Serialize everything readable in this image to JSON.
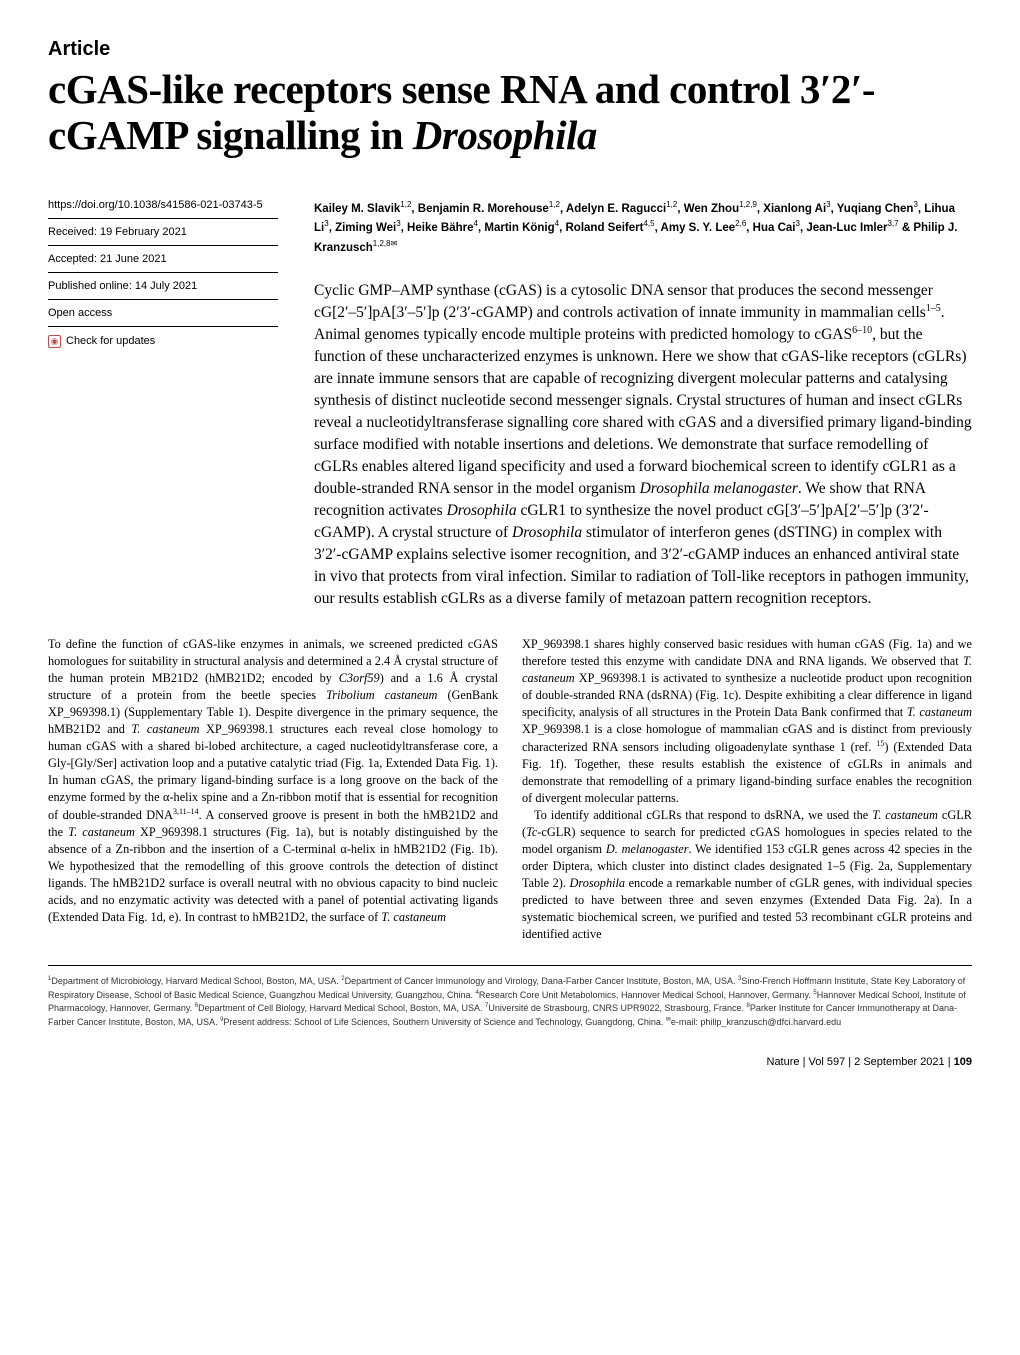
{
  "label": "Article",
  "title": "cGAS-like receptors sense RNA and control 3′2′-cGAMP signalling in <em>Drosophila</em>",
  "meta": {
    "doi": "https://doi.org/10.1038/s41586-021-03743-5",
    "received": "Received: 19 February 2021",
    "accepted": "Accepted: 21 June 2021",
    "published": "Published online: 14 July 2021",
    "access": "Open access",
    "check": "Check for updates"
  },
  "authors": "Kailey M. Slavik<sup>1,2</sup>, Benjamin R. Morehouse<sup>1,2</sup>, Adelyn E. Ragucci<sup>1,2</sup>, Wen Zhou<sup>1,2,9</sup>, Xianlong Ai<sup>3</sup>, Yuqiang Chen<sup>3</sup>, Lihua Li<sup>3</sup>, Ziming Wei<sup>3</sup>, Heike Bähre<sup>4</sup>, Martin König<sup>4</sup>, Roland Seifert<sup>4,5</sup>, Amy S. Y. Lee<sup>2,6</sup>, Hua Cai<sup>3</sup>, Jean-Luc Imler<sup>3,7</sup> & Philip J. Kranzusch<sup>1,2,8✉</sup>",
  "abstract": "Cyclic GMP–AMP synthase (cGAS) is a cytosolic DNA sensor that produces the second messenger cG[2′–5′]pA[3′–5′]p (2′3′-cGAMP) and controls activation of innate immunity in mammalian cells<sup>1–5</sup>. Animal genomes typically encode multiple proteins with predicted homology to cGAS<sup>6–10</sup>, but the function of these uncharacterized enzymes is unknown. Here we show that cGAS-like receptors (cGLRs) are innate immune sensors that are capable of recognizing divergent molecular patterns and catalysing synthesis of distinct nucleotide second messenger signals. Crystal structures of human and insect cGLRs reveal a nucleotidyltransferase signalling core shared with cGAS and a diversified primary ligand-binding surface modified with notable insertions and deletions. We demonstrate that surface remodelling of cGLRs enables altered ligand specificity and used a forward biochemical screen to identify cGLR1 as a double-stranded RNA sensor in the model organism <em>Drosophila melanogaster</em>. We show that RNA recognition activates <em>Drosophila</em> cGLR1 to synthesize the novel product cG[3′–5′]pA[2′–5′]p (3′2′-cGAMP). A crystal structure of <em>Drosophila</em> stimulator of interferon genes (dSTING) in complex with 3′2′-cGAMP explains selective isomer recognition, and 3′2′-cGAMP induces an enhanced antiviral state in vivo that protects from viral infection. Similar to radiation of Toll-like receptors in pathogen immunity, our results establish cGLRs as a diverse family of metazoan pattern recognition receptors.",
  "col1": "To define the function of cGAS-like enzymes in animals, we screened predicted cGAS homologues for suitability in structural analysis and determined a 2.4 Å crystal structure of the human protein MB21D2 (hMB21D2; encoded by <em>C3orf59</em>) and a 1.6 Å crystal structure of a protein from the beetle species <em>Tribolium castaneum</em> (GenBank XP_969398.1) (Supplementary Table 1). Despite divergence in the primary sequence, the hMB21D2 and <em>T. castaneum</em> XP_969398.1 structures each reveal close homology to human cGAS with a shared bi-lobed architecture, a caged nucleotidyltransferase core, a Gly-[Gly/Ser] activation loop and a putative catalytic triad (Fig. 1a, Extended Data Fig. 1). In human cGAS, the primary ligand-binding surface is a long groove on the back of the enzyme formed by the α-helix spine and a Zn-ribbon motif that is essential for recognition of double-stranded DNA<sup>3,11–14</sup>. A conserved groove is present in both the hMB21D2 and the <em>T. castaneum</em> XP_969398.1 structures (Fig. 1a), but is notably distinguished by the absence of a Zn-ribbon and the insertion of a C-terminal α-helix in hMB21D2 (Fig. 1b). We hypothesized that the remodelling of this groove controls the detection of distinct ligands. The hMB21D2 surface is overall neutral with no obvious capacity to bind nucleic acids, and no enzymatic activity was detected with a panel of potential activating ligands (Extended Data Fig. 1d, e). In contrast to hMB21D2, the surface of <em>T. castaneum</em>",
  "col2": "XP_969398.1 shares highly conserved basic residues with human cGAS (Fig. 1a) and we therefore tested this enzyme with candidate DNA and RNA ligands. We observed that <em>T. castaneum</em> XP_969398.1 is activated to synthesize a nucleotide product upon recognition of double-stranded RNA (dsRNA) (Fig. 1c). Despite exhibiting a clear difference in ligand specificity, analysis of all structures in the Protein Data Bank confirmed that <em>T. castaneum</em> XP_969398.1 is a close homologue of mammalian cGAS and is distinct from previously characterized RNA sensors including oligoadenylate synthase 1 (ref. <sup>15</sup>) (Extended Data Fig. 1f). Together, these results establish the existence of cGLRs in animals and demonstrate that remodelling of a primary ligand-binding surface enables the recognition of divergent molecular patterns.<br>&nbsp;&nbsp;&nbsp;To identify additional cGLRs that respond to dsRNA, we used the <em>T. castaneum</em> cGLR (<em>Tc</em>-cGLR) sequence to search for predicted cGAS homologues in species related to the model organism <em>D. melanogaster</em>. We identified 153 cGLR genes across 42 species in the order Diptera, which cluster into distinct clades designated 1–5 (Fig. 2a, Supplementary Table 2). <em>Drosophila</em> encode a remarkable number of cGLR genes, with individual species predicted to have between three and seven enzymes (Extended Data Fig. 2a). In a systematic biochemical screen, we purified and tested 53 recombinant cGLR proteins and identified active",
  "affil": "<sup>1</sup>Department of Microbiology, Harvard Medical School, Boston, MA, USA. <sup>2</sup>Department of Cancer Immunology and Virology, Dana-Farber Cancer Institute, Boston, MA, USA. <sup>3</sup>Sino-French Hoffmann Institute, State Key Laboratory of Respiratory Disease, School of Basic Medical Science, Guangzhou Medical University, Guangzhou, China. <sup>4</sup>Research Core Unit Metabolomics, Hannover Medical School, Hannover, Germany. <sup>5</sup>Hannover Medical School, Institute of Pharmacology, Hannover, Germany. <sup>6</sup>Department of Cell Biology, Harvard Medical School, Boston, MA, USA. <sup>7</sup>Université de Strasbourg, CNRS UPR9022, Strasbourg, France. <sup>8</sup>Parker Institute for Cancer Immunotherapy at Dana-Farber Cancer Institute, Boston, MA, USA. <sup>9</sup>Present address: School of Life Sciences, Southern University of Science and Technology, Guangdong, China. <sup>✉</sup>e-mail: philip_kranzusch@dfci.harvard.edu",
  "footer": "Nature | Vol 597 | 2 September 2021 | <b>109</b>"
}
